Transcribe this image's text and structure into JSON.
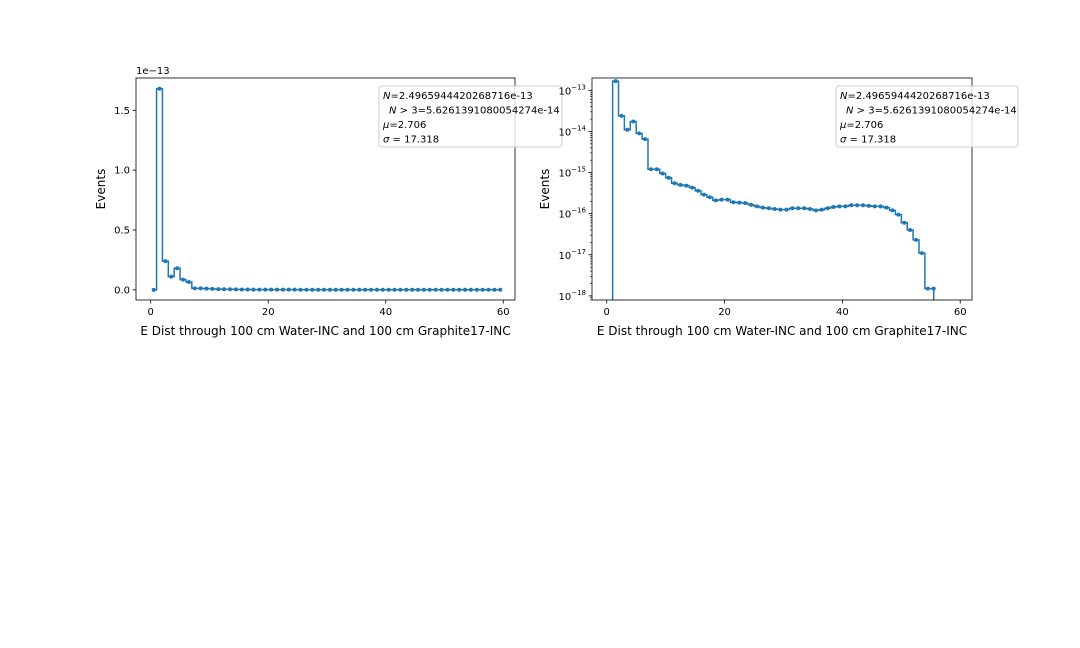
{
  "chart_data": [
    {
      "type": "line",
      "scale": "linear",
      "xlabel": "E Dist through 100 cm Water-INC and 100 cm Graphite17-INC",
      "ylabel": "Events",
      "offset_label": "1e−13",
      "xlim": [
        -2.5,
        62.0
      ],
      "ylim": [
        -0.085,
        1.77
      ],
      "xticks": [
        0,
        20,
        40,
        60
      ],
      "xtick_labels": [
        "0",
        "20",
        "40",
        "60"
      ],
      "yticks": [
        0.0,
        0.5,
        1.0,
        1.5
      ],
      "ytick_labels": [
        "0.0",
        "0.5",
        "1.0",
        "1.5"
      ],
      "legend": {
        "placement": "top-right",
        "lines": [
          {
            "italic": "N",
            "rest": "=2.4965944420268716e-13"
          },
          {
            "italic": "N",
            "rest": " > 3=5.6261391080054274e-14"
          },
          {
            "italic": "μ",
            "rest": "=2.706"
          },
          {
            "italic": "σ",
            "rest": " = 17.318"
          }
        ]
      },
      "x": [
        0.5,
        1.5,
        2.5,
        3.5,
        4.5,
        5.5,
        6.5,
        7.5,
        8.5,
        9.5,
        10.5,
        11.5,
        12.5,
        13.5,
        14.5,
        15.5,
        16.5,
        17.5,
        18.5,
        19.5,
        20.5,
        21.5,
        22.5,
        23.5,
        24.5,
        25.5,
        26.5,
        27.5,
        28.5,
        29.5,
        30.5,
        31.5,
        32.5,
        33.5,
        34.5,
        35.5,
        36.5,
        37.5,
        38.5,
        39.5,
        40.5,
        41.5,
        42.5,
        43.5,
        44.5,
        45.5,
        46.5,
        47.5,
        48.5,
        49.5,
        50.5,
        51.5,
        52.5,
        53.5,
        54.5,
        55.5,
        56.5,
        57.5,
        58.5,
        59.5
      ],
      "y": [
        0,
        1.68,
        0.24,
        0.11,
        0.18,
        0.085,
        0.065,
        0.012,
        0.012,
        0.01,
        0.008,
        0.006,
        0.005,
        0.005,
        0.004,
        0.003,
        0.003,
        0.002,
        0.002,
        0.002,
        0.002,
        0.002,
        0.002,
        0.002,
        0.002,
        0.001,
        0.001,
        0.001,
        0.001,
        0.001,
        0.001,
        0.001,
        0.001,
        0.001,
        0.001,
        0.001,
        0.001,
        0.001,
        0.001,
        0.001,
        0.001,
        0.001,
        0.001,
        0.001,
        0.001,
        0.001,
        0.001,
        0.001,
        0.001,
        0.001,
        0.001,
        0.001,
        0.001,
        0.001,
        0.001,
        0.001,
        0.001,
        0.001,
        0.001,
        0.001
      ]
    },
    {
      "type": "line",
      "scale": "log",
      "xlabel": "E Dist through 100 cm Water-INC and 100 cm Graphite17-INC",
      "ylabel": "Events",
      "xlim": [
        -2.5,
        62.0
      ],
      "ylim_exp": [
        -18.1,
        -12.7
      ],
      "xticks": [
        0,
        20,
        40,
        60
      ],
      "xtick_labels": [
        "0",
        "20",
        "40",
        "60"
      ],
      "yticks_exp": [
        -13,
        -14,
        -15,
        -16,
        -17,
        -18
      ],
      "ytick_base": "10",
      "ytick_exponents": [
        "−13",
        "−14",
        "−15",
        "−16",
        "−17",
        "−18"
      ],
      "legend": {
        "placement": "top-right",
        "lines": [
          {
            "italic": "N",
            "rest": "=2.4965944420268716e-13"
          },
          {
            "italic": "N",
            "rest": " > 3=5.6261391080054274e-14"
          },
          {
            "italic": "μ",
            "rest": "=2.706"
          },
          {
            "italic": "σ",
            "rest": " = 17.318"
          }
        ]
      },
      "x": [
        1.5,
        2.5,
        3.5,
        4.5,
        5.5,
        6.5,
        7.5,
        8.5,
        9.5,
        10.5,
        11.5,
        12.5,
        13.5,
        14.5,
        15.5,
        16.5,
        17.5,
        18.5,
        19.5,
        20.5,
        21.5,
        22.5,
        23.5,
        24.5,
        25.5,
        26.5,
        27.5,
        28.5,
        29.5,
        30.5,
        31.5,
        32.5,
        33.5,
        34.5,
        35.5,
        36.5,
        37.5,
        38.5,
        39.5,
        40.5,
        41.5,
        42.5,
        43.5,
        44.5,
        45.5,
        46.5,
        47.5,
        48.5,
        49.5,
        50.5,
        51.5,
        52.5,
        53.5,
        54.5,
        55.5
      ],
      "y": [
        1.68e-13,
        2.4e-14,
        1.1e-14,
        1.75e-14,
        9e-15,
        6.5e-15,
        1.2e-15,
        1.2e-15,
        9.5e-16,
        7.5e-16,
        5.5e-16,
        5e-16,
        4.8e-16,
        4.3e-16,
        3.6e-16,
        2.9e-16,
        2.5e-16,
        2.1e-16,
        2.2e-16,
        2.2e-16,
        1.9e-16,
        1.85e-16,
        1.8e-16,
        1.65e-16,
        1.5e-16,
        1.4e-16,
        1.35e-16,
        1.3e-16,
        1.25e-16,
        1.25e-16,
        1.35e-16,
        1.35e-16,
        1.35e-16,
        1.3e-16,
        1.2e-16,
        1.25e-16,
        1.35e-16,
        1.45e-16,
        1.5e-16,
        1.5e-16,
        1.6e-16,
        1.6e-16,
        1.6e-16,
        1.55e-16,
        1.5e-16,
        1.5e-16,
        1.4e-16,
        1.2e-16,
        9.5e-17,
        6e-17,
        4e-17,
        2.3e-17,
        1.1e-17,
        1.5e-18,
        1.5e-18
      ]
    }
  ],
  "colors": {
    "line": "#1f77b4",
    "legend_border": "#cccccc"
  }
}
